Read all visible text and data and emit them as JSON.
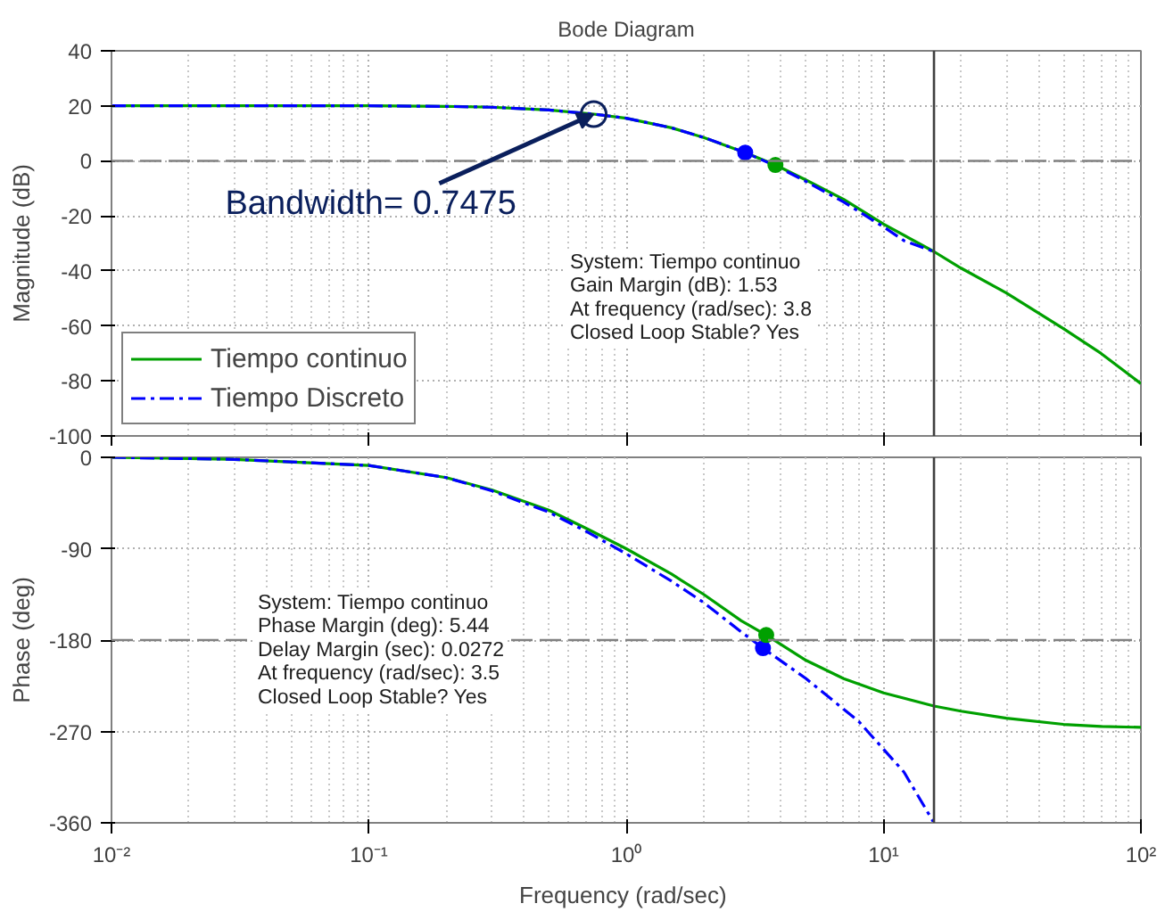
{
  "chart_data": [
    {
      "type": "line",
      "title": "Bode Diagram",
      "ylabel": "Magnitude (dB)",
      "log": "x",
      "xlim": [
        0.01,
        100
      ],
      "xticks": [
        {
          "value": 0.01,
          "label": null
        },
        {
          "value": 0.1,
          "label": null
        },
        {
          "value": 1,
          "label": null
        },
        {
          "value": 10,
          "label": null
        },
        {
          "value": 100,
          "label": null
        }
      ],
      "ylim": [
        -100,
        40
      ],
      "yticks": [
        -100,
        -80,
        -60,
        -40,
        -20,
        0,
        20,
        40
      ],
      "tick_labels": "y",
      "grid": true,
      "legend": "bottom left",
      "series": [
        {
          "name": "Tiempo continuo",
          "color": "#00a000",
          "line_style": "solid",
          "x": [
            0.01,
            0.1,
            0.2,
            0.3,
            0.5,
            0.7475,
            1,
            1.5,
            2,
            2.9,
            3.8,
            5,
            7,
            10,
            15.7,
            20,
            30,
            50,
            70,
            100
          ],
          "values": [
            20,
            20,
            19.8,
            19.5,
            18.5,
            17,
            15.5,
            12,
            8.5,
            3,
            -1.5,
            -7,
            -14,
            -23,
            -33,
            -39,
            -48,
            -61,
            -70,
            -81
          ]
        },
        {
          "name": "Tiempo Discreto",
          "color": "#0000ff",
          "line_style": "dashed",
          "x": [
            0.01,
            0.1,
            0.2,
            0.3,
            0.5,
            0.7475,
            1,
            1.5,
            2,
            2.9,
            3.8,
            5,
            7,
            10,
            12,
            15.7
          ],
          "values": [
            20,
            20,
            19.8,
            19.5,
            18.5,
            17,
            15.5,
            12,
            8.5,
            3,
            -1.8,
            -7.5,
            -15,
            -24,
            -29,
            -33
          ]
        },
        {
          "type": "scatter",
          "marker": "circle",
          "color": "#0000ff",
          "x": [
            2.9
          ],
          "values": [
            3
          ]
        },
        {
          "type": "scatter",
          "marker": "circle",
          "color": "#00a000",
          "x": [
            3.8
          ],
          "values": [
            -1.5
          ]
        }
      ],
      "ref_lines": [
        {
          "axis": "y",
          "value": 0,
          "color": "#808080",
          "line_style": "dashed"
        },
        {
          "axis": "x",
          "value": 15.7,
          "color": "#404040",
          "line_style": "solid"
        }
      ],
      "annotations": [
        {
          "text": "Bandwidth= 0.7475",
          "x": 0.7475,
          "y": 17
        },
        "System: Tiempo continuo\nGain Margin (dB): 1.53\nAt frequency (rad/sec): 3.8\nClosed Loop Stable? Yes"
      ]
    },
    {
      "type": "line",
      "xlabel": "Frequency  (rad/sec)",
      "ylabel": "Phase (deg)",
      "log": "x",
      "xlim": [
        0.01,
        100
      ],
      "xticks": [
        {
          "value": 0.01,
          "label": "10⁻²"
        },
        {
          "value": 0.1,
          "label": "10⁻¹"
        },
        {
          "value": 1,
          "label": "10⁰"
        },
        {
          "value": 10,
          "label": "10¹"
        },
        {
          "value": 100,
          "label": "10²"
        }
      ],
      "ylim": [
        -360,
        0
      ],
      "yticks": [
        -360,
        -270,
        -180,
        -90,
        0
      ],
      "grid": true,
      "series": [
        {
          "color": "#00a000",
          "line_style": "solid",
          "x": [
            0.01,
            0.03,
            0.1,
            0.2,
            0.3,
            0.5,
            0.7,
            1,
            1.5,
            2,
            2.8,
            3.5,
            5,
            7,
            10,
            15.7,
            20,
            30,
            50,
            70,
            100
          ],
          "values": [
            0,
            -2,
            -8,
            -20,
            -32,
            -52,
            -70,
            -90,
            -115,
            -135,
            -161,
            -175,
            -200,
            -218,
            -232,
            -245,
            -250,
            -257,
            -263,
            -265,
            -266
          ]
        },
        {
          "color": "#0000ff",
          "line_style": "dashed",
          "x": [
            0.01,
            0.03,
            0.1,
            0.2,
            0.3,
            0.5,
            0.7,
            1,
            1.5,
            2,
            2.8,
            3.4,
            5,
            8,
            12,
            15.7
          ],
          "values": [
            0,
            -2,
            -8,
            -20,
            -33,
            -54,
            -73,
            -95,
            -122,
            -143,
            -172,
            -188,
            -218,
            -260,
            -310,
            -360
          ]
        },
        {
          "type": "scatter",
          "marker": "circle",
          "color": "#0000ff",
          "x": [
            3.4
          ],
          "values": [
            -188
          ]
        },
        {
          "type": "scatter",
          "marker": "circle",
          "color": "#00a000",
          "x": [
            3.5
          ],
          "values": [
            -175
          ]
        }
      ],
      "ref_lines": [
        {
          "axis": "y",
          "value": -180,
          "color": "#808080",
          "line_style": "dashed"
        },
        {
          "axis": "x",
          "value": 15.7,
          "color": "#404040",
          "line_style": "solid"
        }
      ],
      "annotations": [
        "System: Tiempo continuo\nPhase Margin (deg): 5.44\nDelay Margin (sec): 0.0272\nAt frequency (rad/sec): 3.5\nClosed Loop Stable? Yes"
      ]
    }
  ]
}
